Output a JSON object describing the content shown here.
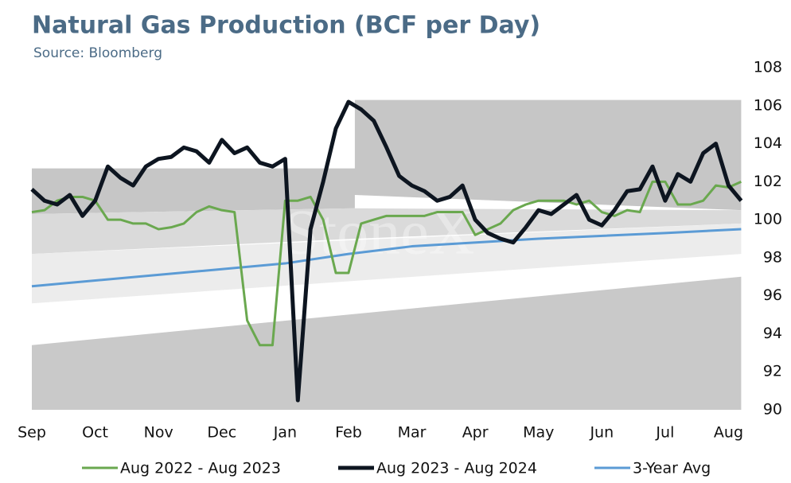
{
  "chart_data": {
    "type": "line",
    "title": "Natural Gas Production (BCF per Day)",
    "subtitle": "Source: Bloomberg",
    "watermark": "StoneX",
    "xlim": [
      0,
      11.22
    ],
    "xticks": [
      {
        "value": 0,
        "label": "Sep"
      },
      {
        "value": 1,
        "label": "Oct"
      },
      {
        "value": 2,
        "label": "Nov"
      },
      {
        "value": 3,
        "label": "Dec"
      },
      {
        "value": 4,
        "label": "Jan"
      },
      {
        "value": 5,
        "label": "Feb"
      },
      {
        "value": 6,
        "label": "Mar"
      },
      {
        "value": 7,
        "label": "Apr"
      },
      {
        "value": 8,
        "label": "May"
      },
      {
        "value": 9,
        "label": "Jun"
      },
      {
        "value": 10,
        "label": "Jul"
      },
      {
        "value": 11,
        "label": "Aug"
      }
    ],
    "ylim": [
      90,
      108
    ],
    "yticks": [
      90,
      92,
      94,
      96,
      98,
      100,
      102,
      104,
      106,
      108
    ],
    "y_axis_side": "right",
    "grid": false,
    "legend": "bottom",
    "x": [
      0,
      0.2,
      0.4,
      0.6,
      0.8,
      1.0,
      1.2,
      1.4,
      1.6,
      1.8,
      2.0,
      2.2,
      2.4,
      2.6,
      2.8,
      3.0,
      3.2,
      3.4,
      3.6,
      3.8,
      4.0,
      4.2,
      4.4,
      4.6,
      4.8,
      5.0,
      5.2,
      5.4,
      5.6,
      5.8,
      6.0,
      6.2,
      6.4,
      6.6,
      6.8,
      7.0,
      7.2,
      7.4,
      7.6,
      7.8,
      8.0,
      8.2,
      8.4,
      8.6,
      8.8,
      9.0,
      9.2,
      9.4,
      9.6,
      9.8,
      10.0,
      10.2,
      10.4,
      10.6,
      10.8,
      11.0,
      11.2
    ],
    "bands": [
      {
        "color": "#c6c6c6",
        "x": [
          0,
          5.1,
          5.1,
          11.2
        ],
        "upper": [
          102.7,
          102.7,
          106.3,
          106.3
        ],
        "lower": [
          100.3,
          100.6,
          101.3,
          100.5
        ]
      },
      {
        "color": "#dadada",
        "x": [
          0,
          5.1,
          11.2
        ],
        "upper": [
          100.3,
          100.6,
          100.5
        ],
        "lower": [
          98.2,
          99.0,
          99.8
        ]
      },
      {
        "color": "#ececec",
        "x": [
          0,
          11.2
        ],
        "upper": [
          98.2,
          99.8
        ],
        "lower": [
          95.6,
          98.2
        ]
      },
      {
        "color": "#c9c9c9",
        "x": [
          0,
          11.2
        ],
        "upper": [
          93.4,
          97.0
        ],
        "lower": [
          90,
          90
        ]
      }
    ],
    "series": [
      {
        "name": "Aug 2022 - Aug 2023",
        "color": "#6aa84f",
        "width": 3,
        "values": [
          100.4,
          100.5,
          101.0,
          101.2,
          101.2,
          101.0,
          100.0,
          100.0,
          99.8,
          99.8,
          99.5,
          99.6,
          99.8,
          100.4,
          100.7,
          100.5,
          100.4,
          94.7,
          93.4,
          93.4,
          101.0,
          101.0,
          101.2,
          100.0,
          97.2,
          97.2,
          99.8,
          100.0,
          100.2,
          100.2,
          100.2,
          100.2,
          100.4,
          100.4,
          100.4,
          99.2,
          99.5,
          99.8,
          100.5,
          100.8,
          101.0,
          101.0,
          101.0,
          100.8,
          101.0,
          100.4,
          100.2,
          100.5,
          100.4,
          102.0,
          102.0,
          100.8,
          100.8,
          101.0,
          101.8,
          101.7,
          102.0
        ]
      },
      {
        "name": "Aug 2023 - Aug 2024",
        "color": "#0d1520",
        "width": 5,
        "values": [
          101.6,
          101.0,
          100.8,
          101.3,
          100.2,
          101.0,
          102.8,
          102.2,
          101.8,
          102.8,
          103.2,
          103.3,
          103.8,
          103.6,
          103.0,
          104.2,
          103.5,
          103.8,
          103.0,
          102.8,
          103.2,
          90.5,
          99.5,
          102.0,
          104.8,
          106.2,
          105.8,
          105.2,
          103.8,
          102.3,
          101.8,
          101.5,
          101.0,
          101.2,
          101.8,
          100.0,
          99.3,
          99.0,
          98.8,
          99.6,
          100.5,
          100.3,
          100.8,
          101.3,
          100.0,
          99.7,
          100.5,
          101.5,
          101.6,
          102.8,
          101.0,
          102.4,
          102.0,
          103.5,
          104.0,
          101.8,
          101.0
        ]
      },
      {
        "name": "3-Year Avg",
        "color": "#5b9bd5",
        "width": 3,
        "x": [
          0,
          2,
          4,
          5,
          6,
          8,
          10,
          11.2
        ],
        "values": [
          96.5,
          97.1,
          97.7,
          98.2,
          98.6,
          99.0,
          99.3,
          99.5
        ]
      }
    ]
  }
}
